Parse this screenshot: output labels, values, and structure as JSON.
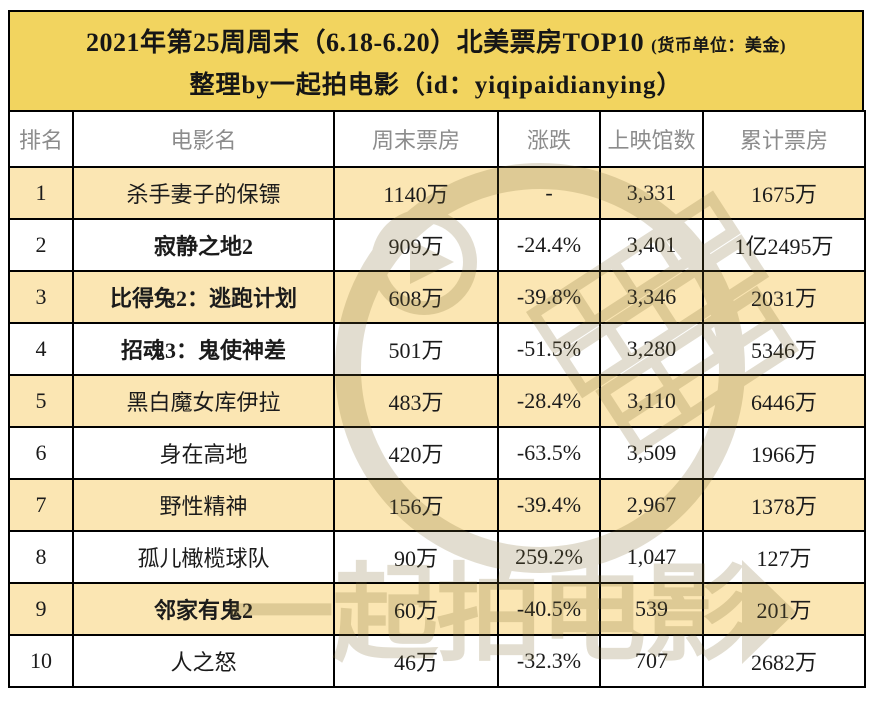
{
  "header": {
    "title_main": "2021年第25周周末（6.18-6.20）北美票房TOP10",
    "title_note": "(货币单位：美金)",
    "subtitle": "整理by一起拍电影（id：yiqipaidianying）"
  },
  "chart_data": {
    "type": "table",
    "title": "2021年第25周周末（6.18-6.20）北美票房TOP10 (货币单位：美金)",
    "subtitle": "整理by一起拍电影（id：yiqipaidianying）",
    "columns": [
      "排名",
      "电影名",
      "周末票房",
      "涨跌",
      "上映馆数",
      "累计票房"
    ],
    "rows": [
      {
        "rank": "1",
        "title": "杀手妻子的保镖",
        "bold": false,
        "weekend": "1140万",
        "change": "-",
        "trend": "flat",
        "theaters": "3,331",
        "total": "1675万"
      },
      {
        "rank": "2",
        "title": "寂静之地2",
        "bold": true,
        "weekend": "909万",
        "change": "-24.4%",
        "trend": "down",
        "theaters": "3,401",
        "total": "1亿2495万"
      },
      {
        "rank": "3",
        "title": "比得兔2：逃跑计划",
        "bold": true,
        "weekend": "608万",
        "change": "-39.8%",
        "trend": "down",
        "theaters": "3,346",
        "total": "2031万"
      },
      {
        "rank": "4",
        "title": "招魂3：鬼使神差",
        "bold": true,
        "weekend": "501万",
        "change": "-51.5%",
        "trend": "down",
        "theaters": "3,280",
        "total": "5346万"
      },
      {
        "rank": "5",
        "title": "黑白魔女库伊拉",
        "bold": false,
        "weekend": "483万",
        "change": "-28.4%",
        "trend": "down",
        "theaters": "3,110",
        "total": "6446万"
      },
      {
        "rank": "6",
        "title": "身在高地",
        "bold": false,
        "weekend": "420万",
        "change": "-63.5%",
        "trend": "down",
        "theaters": "3,509",
        "total": "1966万"
      },
      {
        "rank": "7",
        "title": "野性精神",
        "bold": false,
        "weekend": "156万",
        "change": "-39.4%",
        "trend": "down",
        "theaters": "2,967",
        "total": "1378万"
      },
      {
        "rank": "8",
        "title": "孤儿橄榄球队",
        "bold": false,
        "weekend": "90万",
        "change": "259.2%",
        "trend": "up",
        "theaters": "1,047",
        "total": "127万"
      },
      {
        "rank": "9",
        "title": "邻家有鬼2",
        "bold": true,
        "weekend": "60万",
        "change": "-40.5%",
        "trend": "down",
        "theaters": "539",
        "total": "201万"
      },
      {
        "rank": "10",
        "title": "人之怒",
        "bold": false,
        "weekend": "46万",
        "change": "-32.3%",
        "trend": "down",
        "theaters": "707",
        "total": "2682万"
      }
    ]
  },
  "watermark": {
    "text": "一起拍电影"
  },
  "colors": {
    "accent_yellow": "#F2D45F",
    "row_alt": "#FBE6B3",
    "down_red": "#CE3A32",
    "up_blue": "#42A7CF",
    "header_gray": "#8C8C8C",
    "rank_gray": "#999999",
    "border_black": "#000000",
    "watermark": "#7D6A2E"
  }
}
